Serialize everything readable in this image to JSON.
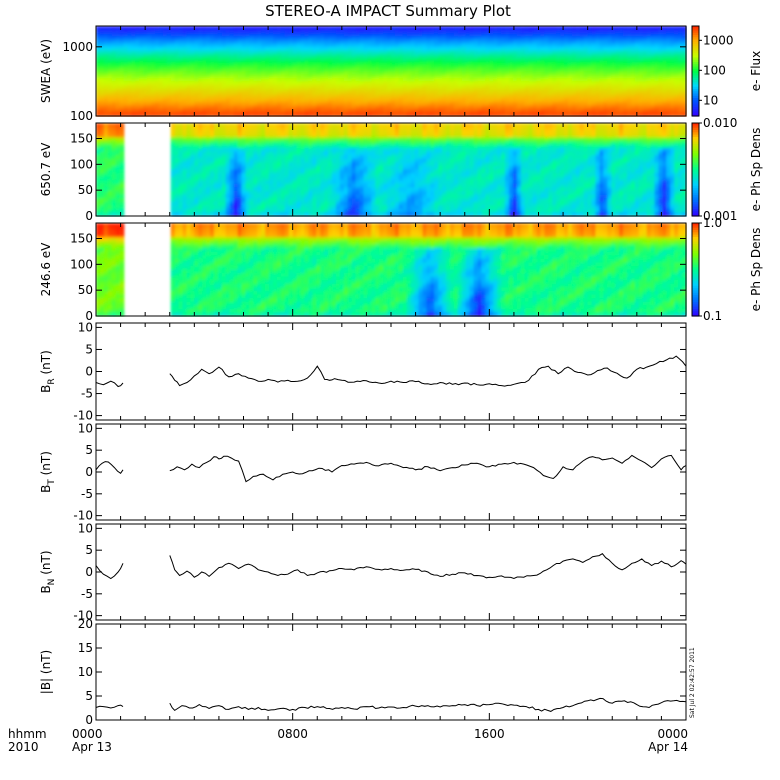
{
  "title": "STEREO-A IMPACT Summary Plot",
  "time_axis": {
    "corner_top": "hhmm",
    "corner_bottom": "2010",
    "ticks": [
      {
        "hour": 0,
        "top": "0000",
        "bottom": "Apr 13"
      },
      {
        "hour": 8,
        "top": "0800",
        "bottom": ""
      },
      {
        "hour": 16,
        "top": "1600",
        "bottom": ""
      },
      {
        "hour": 24,
        "top": "0000",
        "bottom": "Apr 14"
      }
    ],
    "range_hours": [
      0,
      24
    ],
    "data_gap_hours": [
      1.1,
      3.0
    ]
  },
  "timestamp": "Sat Jul  2 02:42:57 2011",
  "chart_data": [
    {
      "type": "heatmap",
      "name": "swea",
      "ylabel": "SWEA (eV)",
      "yscale": "log",
      "ylim": [
        100,
        2000
      ],
      "yticks": [
        {
          "v": 1000,
          "label": "1000"
        },
        {
          "v": 100,
          "label": "100"
        }
      ],
      "colorbar": {
        "label": "e- Flux",
        "scale": "log",
        "range": [
          3,
          3000
        ],
        "ticks": [
          {
            "v": 1000,
            "label": "1000"
          },
          {
            "v": 100,
            "label": "100"
          },
          {
            "v": 10,
            "label": "10"
          }
        ]
      },
      "palette": [
        "#3400ff",
        "#0055ff",
        "#00d8ff",
        "#00ff40",
        "#c8ff00",
        "#ffb000",
        "#ff2500"
      ],
      "energy_levels_norm": [
        [
          100,
          0.97
        ],
        [
          120,
          0.93
        ],
        [
          150,
          0.86
        ],
        [
          200,
          0.78
        ],
        [
          300,
          0.68
        ],
        [
          500,
          0.55
        ],
        [
          800,
          0.4
        ],
        [
          1200,
          0.25
        ],
        [
          1600,
          0.12
        ],
        [
          2000,
          0.04
        ]
      ],
      "has_gap": false
    },
    {
      "type": "heatmap",
      "name": "pad650",
      "ylabel": "650.7 eV",
      "ylim": [
        0,
        180
      ],
      "yticks": [
        {
          "v": 150,
          "label": "150"
        },
        {
          "v": 100,
          "label": "100"
        },
        {
          "v": 50,
          "label": "50"
        },
        {
          "v": 0,
          "label": "0"
        }
      ],
      "colorbar": {
        "label": "e- Ph Sp Dens",
        "scale": "log",
        "range": [
          0.001,
          0.01
        ],
        "ticks": [
          {
            "v": 0.01,
            "label": "0.010"
          },
          {
            "v": 0.001,
            "label": "0.001"
          }
        ]
      },
      "palette": [
        "#3000ff",
        "#0070ff",
        "#00d0ff",
        "#00ff90",
        "#80ff00",
        "#ffd000",
        "#ff2000"
      ],
      "base_norm": 0.42,
      "top_band_norm": 0.78,
      "depletions": [
        [
          9.5,
          11.5,
          0.22
        ],
        [
          11.5,
          14.2,
          0.12
        ],
        [
          5.2,
          6.2,
          0.28
        ],
        [
          16.6,
          17.4,
          0.28
        ],
        [
          20.2,
          21.0,
          0.25
        ],
        [
          22.6,
          23.6,
          0.3
        ]
      ],
      "has_gap": true
    },
    {
      "type": "heatmap",
      "name": "pad246",
      "ylabel": "246.6 eV",
      "ylim": [
        0,
        180
      ],
      "yticks": [
        {
          "v": 150,
          "label": "150"
        },
        {
          "v": 100,
          "label": "100"
        },
        {
          "v": 50,
          "label": "50"
        },
        {
          "v": 0,
          "label": "0"
        }
      ],
      "colorbar": {
        "label": "e- Ph Sp Dens",
        "scale": "log",
        "range": [
          0.1,
          1.0
        ],
        "ticks": [
          {
            "v": 1.0,
            "label": "1.0"
          },
          {
            "v": 0.1,
            "label": "0.1"
          }
        ]
      },
      "palette": [
        "#3000ff",
        "#0070ff",
        "#00d0ff",
        "#00ff90",
        "#80ff00",
        "#ffd000",
        "#ff2000"
      ],
      "base_norm": 0.52,
      "top_band_norm": 0.85,
      "depletions": [
        [
          12.6,
          14.6,
          0.3
        ],
        [
          14.6,
          16.6,
          0.34
        ]
      ],
      "has_gap": true
    },
    {
      "type": "line",
      "name": "br",
      "ylabel": "B",
      "ylabel_sub": "R",
      "ylabel_unit": " (nT)",
      "ylim": [
        -11,
        11
      ],
      "yticks": [
        {
          "v": 10,
          "label": "10"
        },
        {
          "v": 5,
          "label": "5"
        },
        {
          "v": 0,
          "label": "0"
        },
        {
          "v": -5,
          "label": "-5"
        },
        {
          "v": -10,
          "label": "-10"
        }
      ],
      "x": [
        0.0,
        0.3,
        0.6,
        0.9,
        1.1,
        3.0,
        3.2,
        3.4,
        3.7,
        4.0,
        4.3,
        4.6,
        5.0,
        5.4,
        5.8,
        6.2,
        6.6,
        7.0,
        7.4,
        7.8,
        8.2,
        8.6,
        9.0,
        9.3,
        9.5,
        9.7,
        10.0,
        10.5,
        11.0,
        11.5,
        12.0,
        12.5,
        13.0,
        13.5,
        14.0,
        14.5,
        15.0,
        15.5,
        16.0,
        16.5,
        17.0,
        17.3,
        17.6,
        18.0,
        18.4,
        18.8,
        19.2,
        19.6,
        20.0,
        20.4,
        20.8,
        21.2,
        21.6,
        22.0,
        22.4,
        22.8,
        23.2,
        23.6,
        24.0
      ],
      "y": [
        -2.5,
        -3.0,
        -2.2,
        -3.4,
        -2.6,
        -0.5,
        -2.0,
        -3.2,
        -2.5,
        -1.0,
        0.5,
        -0.5,
        1.0,
        -1.2,
        -0.5,
        -1.5,
        -2.2,
        -1.8,
        -2.4,
        -2.0,
        -2.2,
        -1.5,
        1.2,
        -1.8,
        -2.0,
        -1.6,
        -2.0,
        -2.4,
        -2.1,
        -2.6,
        -2.2,
        -2.5,
        -2.3,
        -2.8,
        -2.5,
        -2.9,
        -2.6,
        -3.0,
        -2.8,
        -3.2,
        -2.9,
        -2.5,
        -2.0,
        0.5,
        1.2,
        -0.5,
        1.0,
        -0.2,
        -0.8,
        0.2,
        0.8,
        -0.4,
        -1.5,
        0.5,
        1.0,
        1.8,
        2.6,
        3.5,
        1.2
      ]
    },
    {
      "type": "line",
      "name": "bt",
      "ylabel": "B",
      "ylabel_sub": "T",
      "ylabel_unit": " (nT)",
      "ylim": [
        -11,
        11
      ],
      "yticks": [
        {
          "v": 10,
          "label": "10"
        },
        {
          "v": 5,
          "label": "5"
        },
        {
          "v": 0,
          "label": "0"
        },
        {
          "v": -5,
          "label": "-5"
        },
        {
          "v": -10,
          "label": "-10"
        }
      ],
      "x": [
        0.0,
        0.25,
        0.5,
        0.75,
        1.0,
        1.1,
        3.0,
        3.3,
        3.6,
        3.9,
        4.2,
        4.5,
        4.8,
        5.0,
        5.2,
        5.5,
        5.8,
        6.1,
        6.4,
        6.8,
        7.2,
        7.6,
        8.0,
        8.4,
        8.8,
        9.2,
        9.6,
        10.0,
        10.5,
        11.0,
        11.5,
        12.0,
        12.5,
        13.0,
        13.5,
        14.0,
        14.5,
        15.0,
        15.5,
        16.0,
        16.5,
        17.0,
        17.4,
        17.8,
        18.2,
        18.6,
        19.0,
        19.4,
        19.8,
        20.2,
        20.6,
        21.0,
        21.4,
        21.8,
        22.2,
        22.6,
        23.0,
        23.4,
        23.8,
        24.0
      ],
      "y": [
        0.5,
        2.0,
        2.3,
        1.0,
        -0.3,
        0.5,
        0.3,
        1.2,
        0.5,
        1.8,
        1.0,
        2.2,
        3.5,
        3.0,
        3.6,
        3.2,
        2.5,
        -2.2,
        -1.0,
        -0.5,
        -1.8,
        -0.5,
        0.0,
        -0.4,
        0.3,
        0.8,
        0.0,
        1.5,
        1.8,
        2.2,
        1.4,
        2.0,
        1.0,
        0.5,
        1.2,
        0.3,
        1.0,
        1.6,
        2.0,
        1.2,
        1.8,
        2.2,
        1.8,
        1.0,
        -0.8,
        -1.5,
        1.2,
        0.5,
        2.5,
        3.5,
        2.8,
        3.2,
        2.0,
        3.8,
        2.5,
        1.0,
        3.0,
        3.8,
        0.5,
        1.5
      ]
    },
    {
      "type": "line",
      "name": "bn",
      "ylabel": "B",
      "ylabel_sub": "N",
      "ylabel_unit": " (nT)",
      "ylim": [
        -11,
        11
      ],
      "yticks": [
        {
          "v": 10,
          "label": "10"
        },
        {
          "v": 5,
          "label": "5"
        },
        {
          "v": 0,
          "label": "0"
        },
        {
          "v": -5,
          "label": "-5"
        },
        {
          "v": -10,
          "label": "-10"
        }
      ],
      "x": [
        0.0,
        0.3,
        0.6,
        0.9,
        1.1,
        3.0,
        3.2,
        3.4,
        3.7,
        4.0,
        4.3,
        4.6,
        5.0,
        5.4,
        5.8,
        6.2,
        6.6,
        7.0,
        7.4,
        7.8,
        8.2,
        8.6,
        9.0,
        9.5,
        10.0,
        10.5,
        11.0,
        11.5,
        12.0,
        12.5,
        13.0,
        13.5,
        14.0,
        14.5,
        15.0,
        15.5,
        16.0,
        16.5,
        17.0,
        17.4,
        17.8,
        18.2,
        18.6,
        19.0,
        19.4,
        19.8,
        20.2,
        20.6,
        21.0,
        21.4,
        21.8,
        22.2,
        22.6,
        23.0,
        23.4,
        23.8,
        24.0
      ],
      "y": [
        1.5,
        -0.5,
        -1.5,
        0.0,
        2.0,
        3.8,
        0.5,
        -0.8,
        0.2,
        -1.2,
        0.0,
        -1.0,
        1.0,
        2.0,
        0.8,
        1.8,
        0.5,
        0.0,
        -0.8,
        -0.5,
        0.5,
        -0.8,
        -0.2,
        0.3,
        0.8,
        0.5,
        1.2,
        0.6,
        0.8,
        0.4,
        0.6,
        0.0,
        -1.0,
        -0.5,
        -0.2,
        -0.8,
        -1.2,
        -0.9,
        -1.5,
        -1.2,
        -0.8,
        0.2,
        1.5,
        2.5,
        3.0,
        2.2,
        3.5,
        4.2,
        2.0,
        0.5,
        2.0,
        3.0,
        1.5,
        2.5,
        1.2,
        2.6,
        1.8
      ]
    },
    {
      "type": "line",
      "name": "bmag",
      "ylabel": "|B| (nT)",
      "ylim": [
        0,
        20
      ],
      "yticks": [
        {
          "v": 20,
          "label": "20"
        },
        {
          "v": 15,
          "label": "15"
        },
        {
          "v": 10,
          "label": "10"
        },
        {
          "v": 5,
          "label": "5"
        },
        {
          "v": 0,
          "label": "0"
        }
      ],
      "x": [
        0.0,
        0.3,
        0.6,
        0.9,
        1.1,
        3.0,
        3.2,
        3.5,
        3.8,
        4.2,
        4.6,
        5.0,
        5.4,
        5.8,
        6.2,
        6.6,
        7.0,
        7.5,
        8.0,
        8.5,
        9.0,
        9.5,
        10.0,
        10.5,
        11.0,
        11.5,
        12.0,
        12.5,
        13.0,
        13.5,
        14.0,
        14.5,
        15.0,
        15.5,
        16.0,
        16.5,
        17.0,
        17.5,
        18.0,
        18.5,
        19.0,
        19.5,
        20.0,
        20.5,
        21.0,
        21.5,
        22.0,
        22.5,
        23.0,
        23.5,
        24.0
      ],
      "y": [
        2.6,
        2.8,
        2.5,
        3.0,
        2.8,
        3.5,
        2.0,
        3.0,
        2.5,
        3.2,
        2.4,
        3.0,
        2.2,
        2.8,
        2.2,
        2.6,
        2.0,
        2.4,
        2.2,
        2.6,
        2.8,
        2.4,
        2.6,
        2.3,
        2.8,
        2.5,
        2.7,
        2.6,
        2.9,
        3.0,
        2.7,
        3.0,
        3.2,
        3.0,
        3.2,
        3.4,
        3.1,
        2.8,
        2.2,
        1.8,
        2.6,
        3.2,
        4.0,
        4.5,
        3.5,
        4.0,
        3.2,
        2.6,
        3.6,
        4.0,
        3.8
      ]
    }
  ]
}
